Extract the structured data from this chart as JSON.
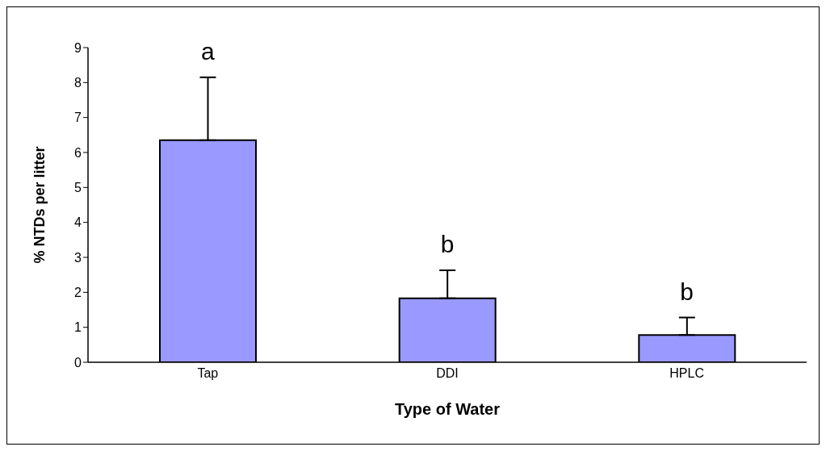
{
  "chart_data": {
    "type": "bar",
    "xlabel": "Type of Water",
    "ylabel": "% NTDs per litter",
    "categories": [
      "Tap",
      "DDI",
      "HPLC"
    ],
    "values": [
      6.35,
      1.83,
      0.78
    ],
    "errors": [
      [
        6.35,
        8.15
      ],
      [
        1.83,
        2.63
      ],
      [
        0.78,
        1.28
      ]
    ],
    "color": "#9999ff",
    "ylim": [
      0,
      9
    ],
    "yticks": [
      0,
      1,
      2,
      3,
      4,
      5,
      6,
      7,
      8,
      9
    ],
    "annotations": [
      "a",
      "b",
      "b"
    ]
  }
}
